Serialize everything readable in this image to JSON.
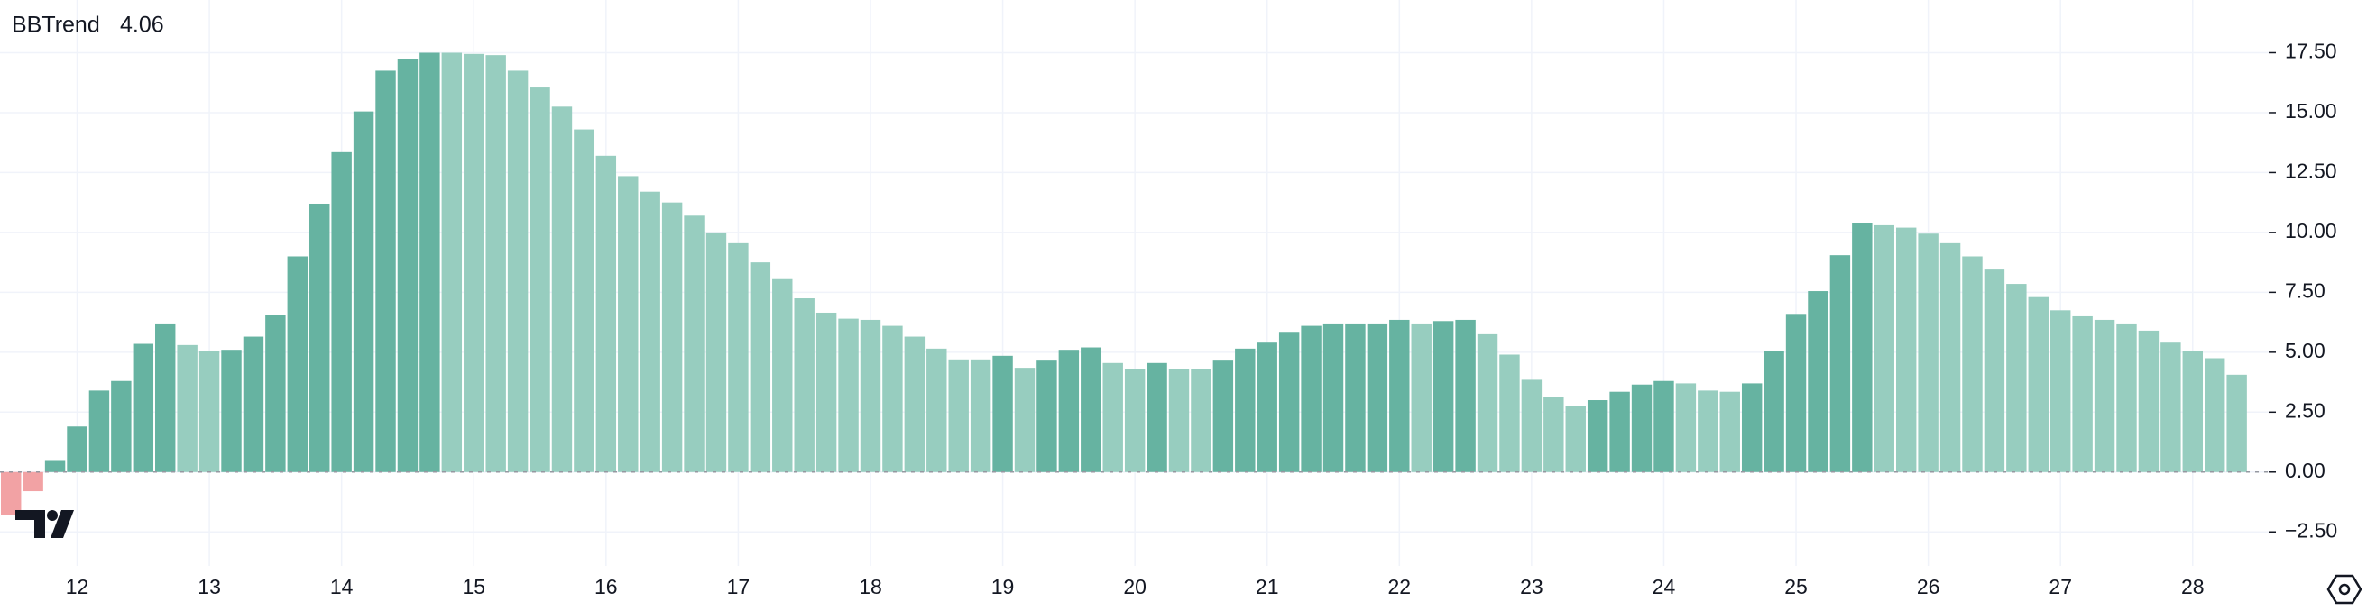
{
  "chart_data": {
    "type": "bar",
    "series": [
      {
        "name": "BBTrend",
        "current_value": 4.06,
        "values": [
          -1.8,
          -0.8,
          0.5,
          1.9,
          3.4,
          3.8,
          5.35,
          6.2,
          5.3,
          5.05,
          5.1,
          5.65,
          6.55,
          9.0,
          11.2,
          13.35,
          15.05,
          16.75,
          17.25,
          17.5,
          17.5,
          17.45,
          17.4,
          16.75,
          16.05,
          15.25,
          14.3,
          13.2,
          12.35,
          11.7,
          11.25,
          10.7,
          10.0,
          9.55,
          8.75,
          8.05,
          7.25,
          6.65,
          6.4,
          6.35,
          6.1,
          5.65,
          5.15,
          4.7,
          4.7,
          4.85,
          4.35,
          4.65,
          5.1,
          5.2,
          4.55,
          4.3,
          4.55,
          4.3,
          4.3,
          4.65,
          5.15,
          5.4,
          5.85,
          6.1,
          6.2,
          6.2,
          6.2,
          6.35,
          6.2,
          6.3,
          6.35,
          5.75,
          4.9,
          3.85,
          3.15,
          2.75,
          3.0,
          3.35,
          3.65,
          3.8,
          3.7,
          3.4,
          3.35,
          3.7,
          5.05,
          6.6,
          7.55,
          9.05,
          10.4,
          10.3,
          10.2,
          9.95,
          9.55,
          9.0,
          8.45,
          7.85,
          7.3,
          6.75,
          6.5,
          6.35,
          6.2,
          5.9,
          5.4,
          5.05,
          4.75,
          4.06
        ],
        "colors": [
          "#f2a2a4",
          "#f2a2a4",
          "#66b3a1",
          "#66b3a1",
          "#66b3a1",
          "#66b3a1",
          "#66b3a1",
          "#66b3a1",
          "#97cdbf",
          "#97cdbf",
          "#66b3a1",
          "#66b3a1",
          "#66b3a1",
          "#66b3a1",
          "#66b3a1",
          "#66b3a1",
          "#66b3a1",
          "#66b3a1",
          "#66b3a1",
          "#66b3a1",
          "#97cdbf",
          "#97cdbf",
          "#97cdbf",
          "#97cdbf",
          "#97cdbf",
          "#97cdbf",
          "#97cdbf",
          "#97cdbf",
          "#97cdbf",
          "#97cdbf",
          "#97cdbf",
          "#97cdbf",
          "#97cdbf",
          "#97cdbf",
          "#97cdbf",
          "#97cdbf",
          "#97cdbf",
          "#97cdbf",
          "#97cdbf",
          "#97cdbf",
          "#97cdbf",
          "#97cdbf",
          "#97cdbf",
          "#97cdbf",
          "#97cdbf",
          "#66b3a1",
          "#97cdbf",
          "#66b3a1",
          "#66b3a1",
          "#66b3a1",
          "#97cdbf",
          "#97cdbf",
          "#66b3a1",
          "#97cdbf",
          "#97cdbf",
          "#66b3a1",
          "#66b3a1",
          "#66b3a1",
          "#66b3a1",
          "#66b3a1",
          "#66b3a1",
          "#66b3a1",
          "#66b3a1",
          "#66b3a1",
          "#97cdbf",
          "#66b3a1",
          "#66b3a1",
          "#97cdbf",
          "#97cdbf",
          "#97cdbf",
          "#97cdbf",
          "#97cdbf",
          "#66b3a1",
          "#66b3a1",
          "#66b3a1",
          "#66b3a1",
          "#97cdbf",
          "#97cdbf",
          "#97cdbf",
          "#66b3a1",
          "#66b3a1",
          "#66b3a1",
          "#66b3a1",
          "#66b3a1",
          "#66b3a1",
          "#97cdbf",
          "#97cdbf",
          "#97cdbf",
          "#97cdbf",
          "#97cdbf",
          "#97cdbf",
          "#97cdbf",
          "#97cdbf",
          "#97cdbf",
          "#97cdbf",
          "#97cdbf",
          "#97cdbf",
          "#97cdbf",
          "#97cdbf",
          "#97cdbf",
          "#97cdbf",
          "#97cdbf"
        ]
      }
    ],
    "categories": [
      null,
      null,
      null,
      "12",
      null,
      null,
      null,
      null,
      null,
      "13",
      null,
      null,
      null,
      null,
      null,
      "14",
      null,
      null,
      null,
      null,
      null,
      "15",
      null,
      null,
      null,
      null,
      null,
      "16",
      null,
      null,
      null,
      null,
      null,
      "17",
      null,
      null,
      null,
      null,
      null,
      "18",
      null,
      null,
      null,
      null,
      null,
      "19",
      null,
      null,
      null,
      null,
      null,
      "20",
      null,
      null,
      null,
      null,
      null,
      "21",
      null,
      null,
      null,
      null,
      null,
      "22",
      null,
      null,
      null,
      null,
      null,
      "23",
      null,
      null,
      null,
      null,
      null,
      "24",
      null,
      null,
      null,
      null,
      null,
      "25",
      null,
      null,
      null,
      null,
      null,
      "26",
      null,
      null,
      null,
      null,
      null,
      "27",
      null,
      null,
      null,
      null,
      null,
      "28",
      null,
      null
    ],
    "ylim": [
      -3.92,
      19.7
    ],
    "yticks": [
      {
        "value": -2.5,
        "label": "−2.50"
      },
      {
        "value": 0,
        "label": "0.00"
      },
      {
        "value": 2.5,
        "label": "2.50"
      },
      {
        "value": 5,
        "label": "5.00"
      },
      {
        "value": 7.5,
        "label": "7.50"
      },
      {
        "value": 10,
        "label": "10.00"
      },
      {
        "value": 12.5,
        "label": "12.50"
      },
      {
        "value": 15,
        "label": "15.00"
      },
      {
        "value": 17.5,
        "label": "17.50"
      }
    ],
    "grid": true,
    "legend_position": "top-left",
    "value_color": "#3f9c84"
  }
}
